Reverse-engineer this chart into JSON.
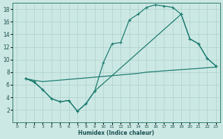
{
  "xlabel": "Humidex (Indice chaleur)",
  "bg_color": "#cce8e4",
  "line_color": "#1a7a6e",
  "grid_color": "#aacfcb",
  "xlim": [
    -0.5,
    23.5
  ],
  "ylim": [
    0,
    19
  ],
  "xticks": [
    0,
    1,
    2,
    3,
    4,
    5,
    6,
    7,
    8,
    9,
    10,
    11,
    12,
    13,
    14,
    15,
    16,
    17,
    18,
    19,
    20,
    21,
    22,
    23
  ],
  "yticks": [
    2,
    4,
    6,
    8,
    10,
    12,
    14,
    16,
    18
  ],
  "line1_x": [
    1,
    2,
    3,
    4,
    5,
    6,
    7,
    8,
    9,
    10,
    11,
    12,
    13,
    14,
    15,
    16,
    17,
    18,
    19,
    20,
    21,
    22,
    23
  ],
  "line1_y": [
    7.0,
    6.5,
    5.2,
    3.8,
    3.3,
    3.5,
    1.8,
    3.0,
    5.0,
    9.5,
    12.5,
    12.7,
    16.3,
    17.2,
    18.3,
    18.7,
    18.5,
    18.3,
    17.2,
    13.3,
    12.5,
    10.2,
    9.0
  ],
  "line2_x": [
    1,
    2,
    3,
    9,
    14,
    15,
    16,
    17,
    18,
    19,
    20,
    21,
    22,
    23
  ],
  "line2_y": [
    7.0,
    6.7,
    6.5,
    7.2,
    7.8,
    8.0,
    8.1,
    8.2,
    8.3,
    8.4,
    8.5,
    8.6,
    8.7,
    8.8
  ],
  "line3_x": [
    1,
    2,
    3,
    4,
    5,
    6,
    7,
    8,
    9,
    19,
    20,
    21,
    22,
    23
  ],
  "line3_y": [
    7.0,
    6.4,
    5.2,
    3.8,
    3.3,
    3.5,
    1.8,
    3.0,
    5.0,
    17.2,
    13.3,
    12.5,
    10.2,
    9.0
  ]
}
